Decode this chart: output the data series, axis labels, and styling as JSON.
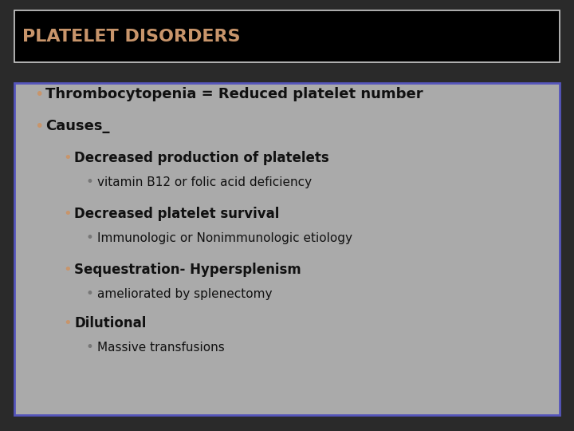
{
  "title": "PLATELET DISORDERS",
  "title_color": "#c8956b",
  "title_bg": "#000000",
  "title_border": "#cccccc",
  "slide_bg": "#2a2a2a",
  "content_bg": "#aaaaaa",
  "content_border": "#5555bb",
  "bullet_color_orange": "#c8956b",
  "bullet_color_gray": "#777777",
  "text_color_black": "#111111",
  "lines": [
    {
      "level": 0,
      "bold": true,
      "text": "Thrombocytopenia = Reduced platelet number"
    },
    {
      "level": 0,
      "bold": true,
      "text": "Causes_"
    },
    {
      "level": 1,
      "bold": true,
      "text": "Decreased production of platelets"
    },
    {
      "level": 2,
      "bold": false,
      "text": "vitamin B12 or folic acid deficiency"
    },
    {
      "level": 1,
      "bold": true,
      "text": "Decreased platelet survival"
    },
    {
      "level": 2,
      "bold": false,
      "text": "Immunologic or Nonimmunologic etiology"
    },
    {
      "level": 1,
      "bold": true,
      "text": "Sequestration- Hypersplenism"
    },
    {
      "level": 2,
      "bold": false,
      "text": "ameliorated by splenectomy"
    },
    {
      "level": 1,
      "bold": true,
      "text": "Dilutional"
    },
    {
      "level": 2,
      "bold": false,
      "text": "Massive transfusions"
    }
  ],
  "title_fontsize": 16,
  "level0_fontsize": 13,
  "level1_fontsize": 12,
  "level2_fontsize": 11,
  "indent_level0": 0.035,
  "indent_level1": 0.085,
  "indent_level2": 0.125
}
